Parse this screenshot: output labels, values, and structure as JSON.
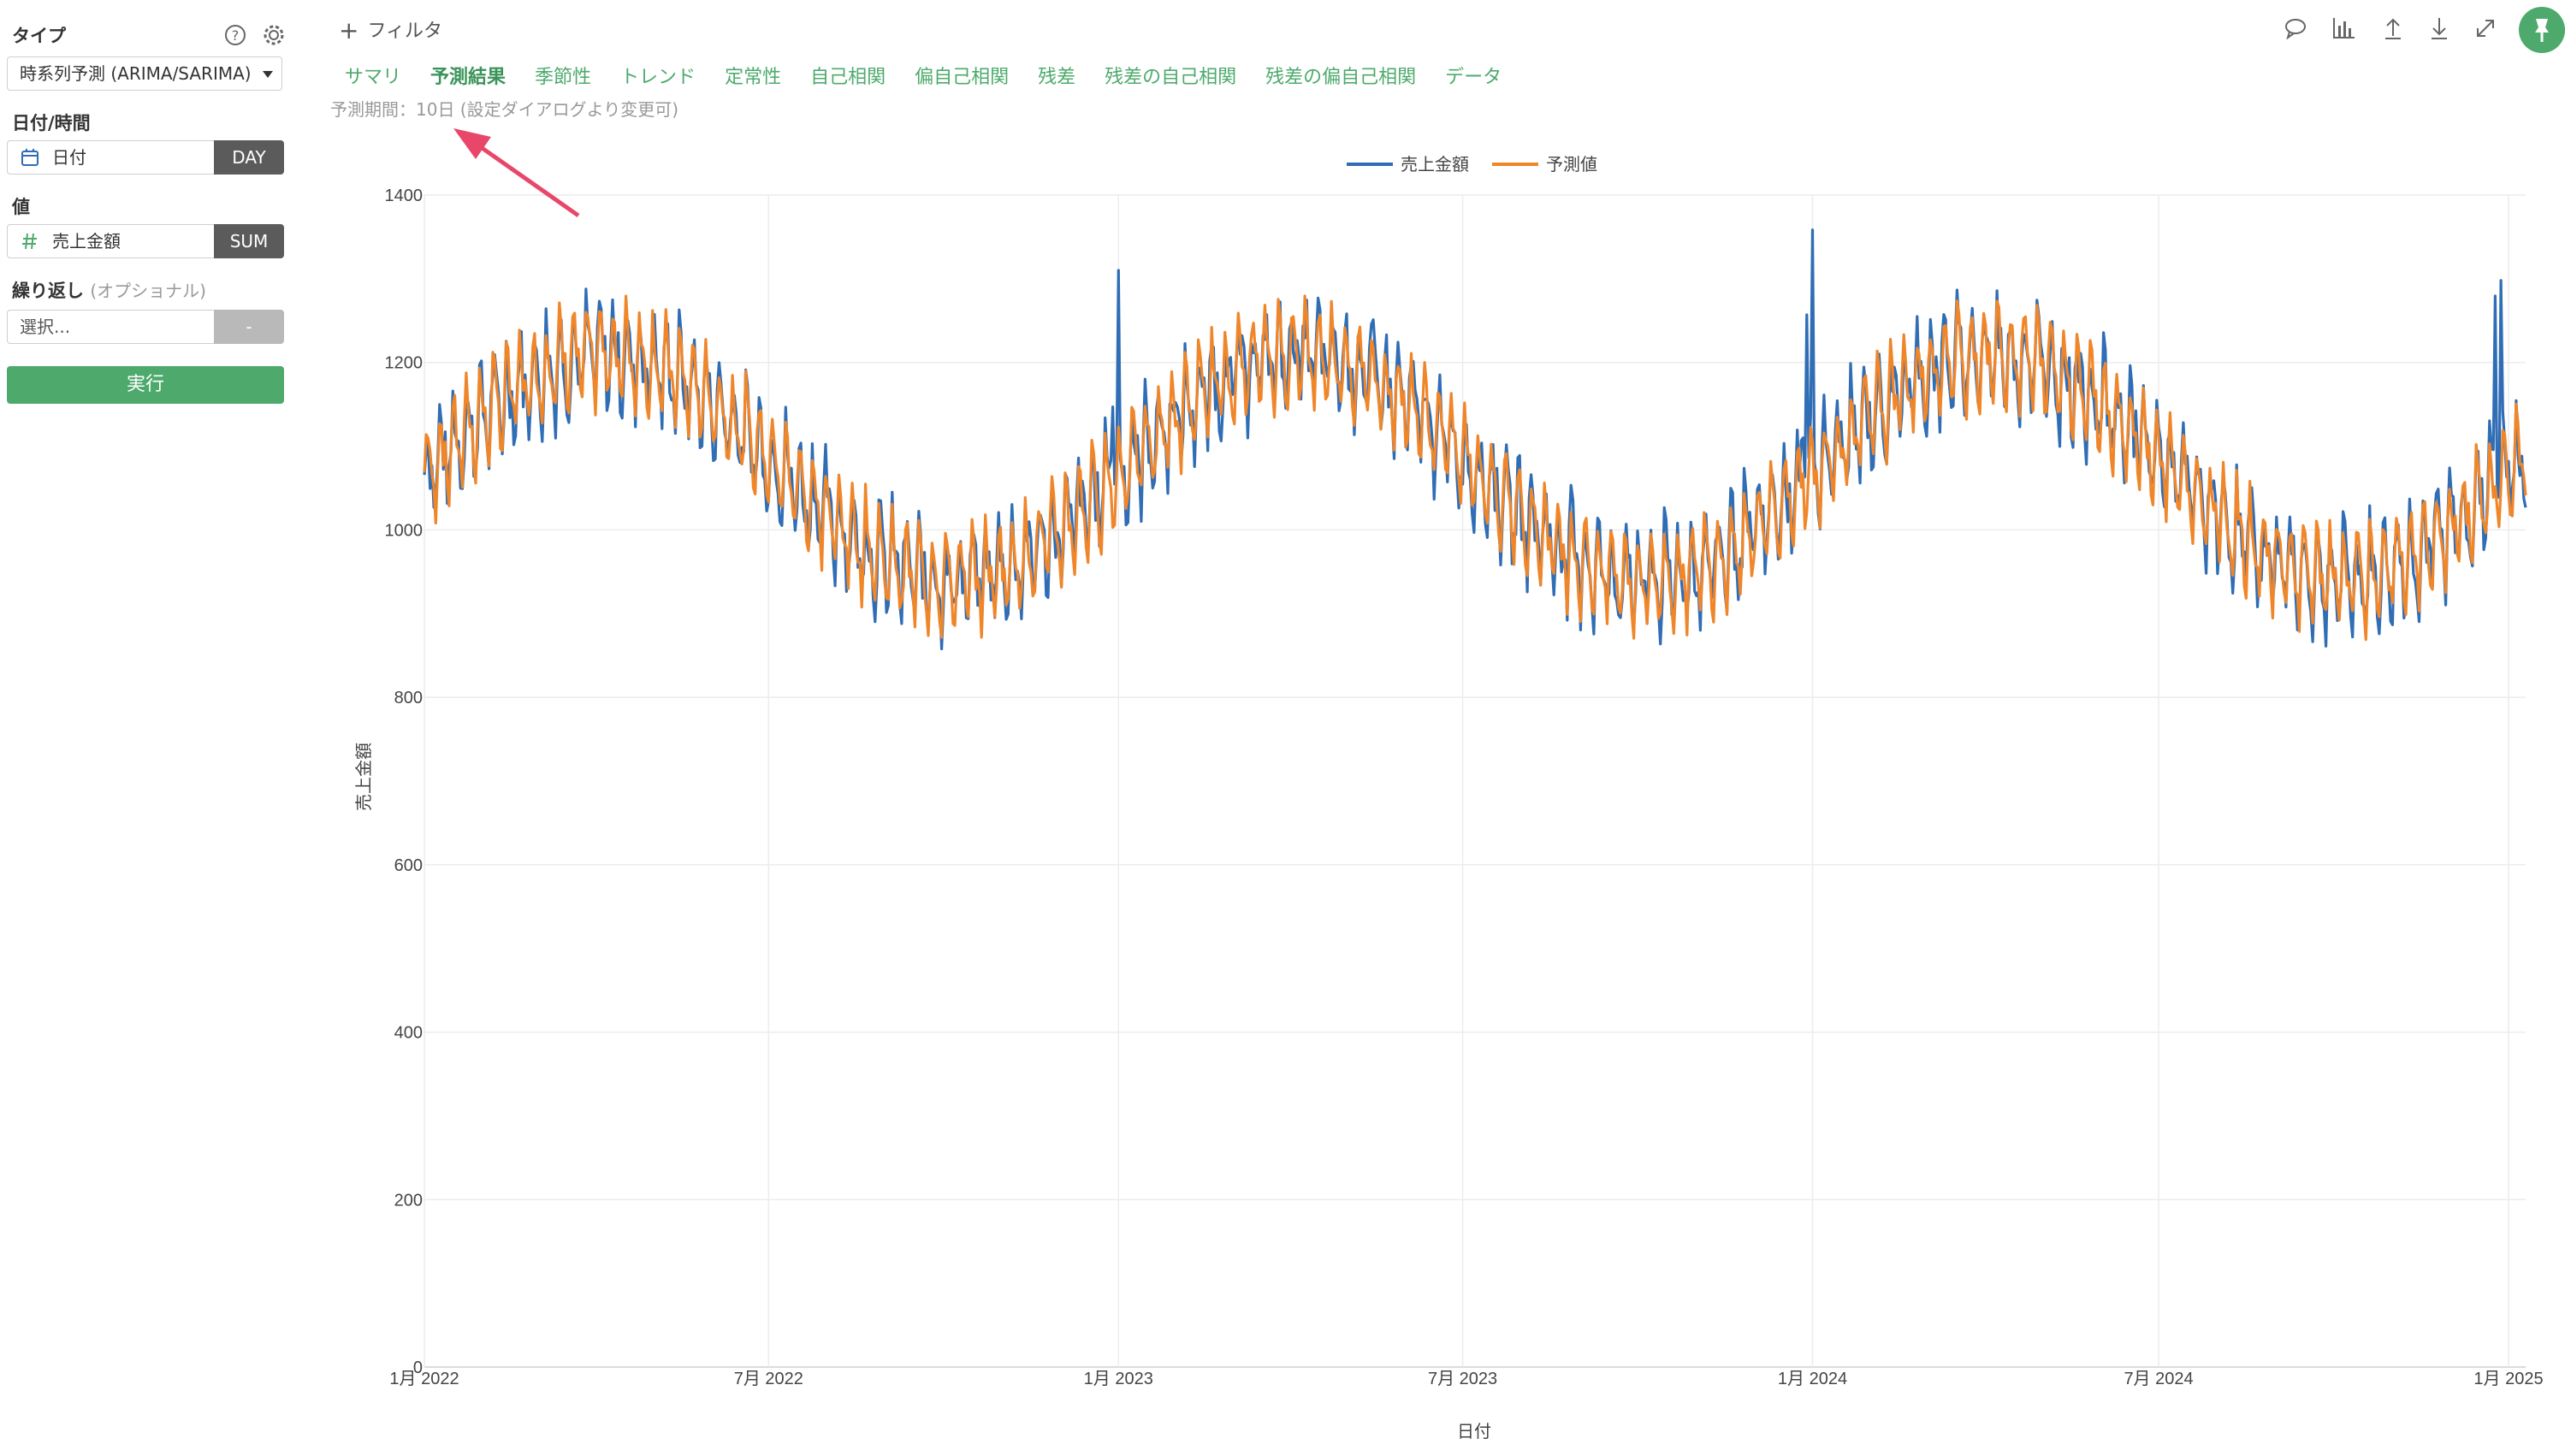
{
  "sidebar": {
    "type_label": "タイプ",
    "type_value": "時系列予測 (ARIMA/SARIMA)",
    "date_label": "日付/時間",
    "date_value": "日付",
    "date_unit": "DAY",
    "value_label": "値",
    "value_field": "売上金額",
    "value_agg": "SUM",
    "repeat_label": "繰り返し",
    "repeat_optional": "(オプショナル)",
    "repeat_placeholder": "選択...",
    "repeat_tag": "-",
    "run_label": "実行"
  },
  "header": {
    "filter_label": "フィルタ",
    "tabs": [
      {
        "label": "サマリ"
      },
      {
        "label": "予測結果"
      },
      {
        "label": "季節性"
      },
      {
        "label": "トレンド"
      },
      {
        "label": "定常性"
      },
      {
        "label": "自己相関"
      },
      {
        "label": "偏自己相関"
      },
      {
        "label": "残差"
      },
      {
        "label": "残差の自己相関"
      },
      {
        "label": "残差の偏自己相関"
      },
      {
        "label": "データ"
      }
    ],
    "active_tab": "予測結果",
    "note": "予測期間：10日 (設定ダイアログより変更可)",
    "toolbar_icons": [
      "comment-icon",
      "chart-icon",
      "upload-icon",
      "download-icon",
      "expand-icon",
      "pin-icon"
    ]
  },
  "colors": {
    "accent": "#4daa6c",
    "series_actual": "#2f6db5",
    "series_forecast": "#f0862a",
    "annotation_arrow": "#e8476a"
  },
  "chart_data": {
    "type": "line",
    "xlabel": "日付",
    "ylabel": "売上金額",
    "ylim": [
      0,
      1400
    ],
    "yticks": [
      0,
      200,
      400,
      600,
      800,
      1000,
      1200,
      1400
    ],
    "xlim": [
      "2022-01-01",
      "2025-01-10"
    ],
    "xticks": [
      {
        "date": "2022-01-01",
        "label": "1月 2022"
      },
      {
        "date": "2022-07-01",
        "label": "7月 2022"
      },
      {
        "date": "2023-01-01",
        "label": "1月 2023"
      },
      {
        "date": "2023-07-01",
        "label": "7月 2023"
      },
      {
        "date": "2024-01-01",
        "label": "1月 2024"
      },
      {
        "date": "2024-07-01",
        "label": "7月 2024"
      },
      {
        "date": "2025-01-01",
        "label": "1月 2025"
      }
    ],
    "grid": true,
    "legend_position": "top-center",
    "series": [
      {
        "name": "売上金額",
        "color": "#2f6db5",
        "role": "actual"
      },
      {
        "name": "予測値",
        "color": "#f0862a",
        "role": "forecast"
      }
    ],
    "pattern": {
      "frequency": "daily",
      "annual_seasonality": {
        "peak_month": "4月",
        "trough_month": "9月-10月",
        "mean": 1075,
        "amplitude": 135
      },
      "weekly_amplitude": 45,
      "spikes": [
        {
          "date": "2023-01-01",
          "value": 1245
        },
        {
          "date": "2024-01-01",
          "value": 1355
        },
        {
          "date": "2024-12-28",
          "value": 1320
        }
      ],
      "range_min": 840,
      "range_max": 1355
    }
  }
}
